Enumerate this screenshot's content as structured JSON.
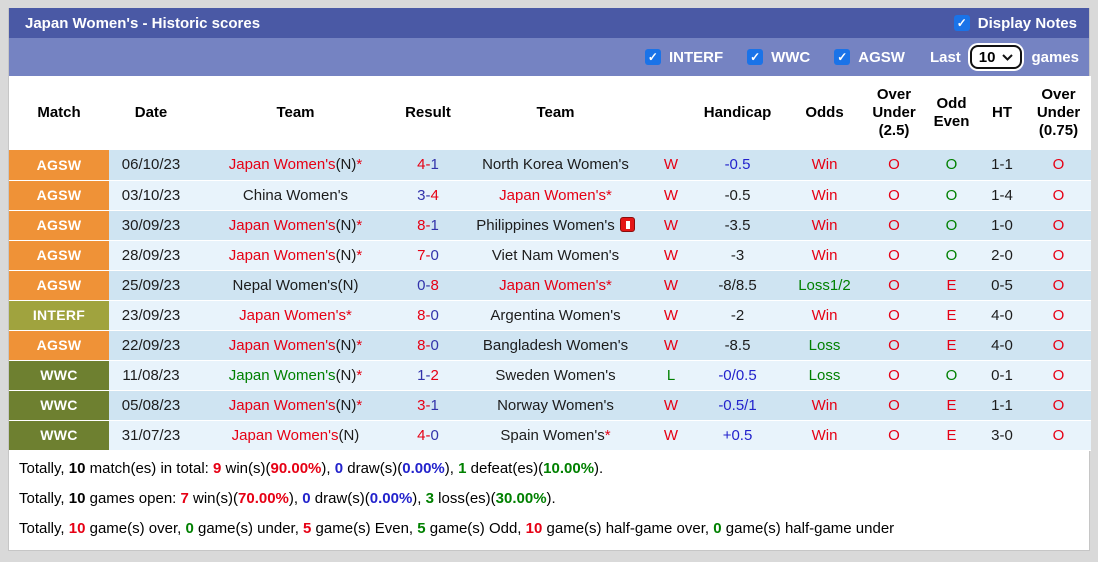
{
  "palette": {
    "red": "#e60014",
    "green": "#008000",
    "blue": "#3232aa",
    "hblue": "#2222cc",
    "black": "#1c1c1c",
    "agsw": "#ef9237",
    "interf": "#a0a33e",
    "wwc": "#6e8030",
    "bar_dark": "#4a59a5",
    "bar_light": "#7583c2",
    "checkbox_blue": "#1a73e8",
    "row_odd": "#cfe4f2",
    "row_even": "#e8f3fb"
  },
  "title_bar": {
    "title": "Japan Women's - Historic scores",
    "display_notes_label": "Display Notes",
    "display_notes_checked": true
  },
  "filter_bar": {
    "checkboxes": [
      {
        "label": "INTERF",
        "checked": true
      },
      {
        "label": "WWC",
        "checked": true
      },
      {
        "label": "AGSW",
        "checked": true
      }
    ],
    "last_label": "Last",
    "games_count": "10",
    "games_label": "games"
  },
  "table": {
    "headers": [
      {
        "lines": [
          "Match"
        ]
      },
      {
        "lines": [
          "Date"
        ]
      },
      {
        "lines": [
          "Team"
        ]
      },
      {
        "lines": [
          "Result"
        ]
      },
      {
        "lines": [
          "Team"
        ]
      },
      {
        "lines": [
          ""
        ]
      },
      {
        "lines": [
          "Handicap"
        ]
      },
      {
        "lines": [
          "Odds"
        ]
      },
      {
        "lines": [
          "Over",
          "Under",
          "(2.5)"
        ]
      },
      {
        "lines": [
          "Odd",
          "Even"
        ]
      },
      {
        "lines": [
          "HT"
        ]
      },
      {
        "lines": [
          "Over",
          "Under",
          "(0.75)"
        ]
      }
    ],
    "rows": [
      {
        "badge": "AGSW",
        "badge_color": "agsw",
        "date": "06/10/23",
        "team1": [
          {
            "t": "Japan Women's",
            "c": "red"
          },
          {
            "t": "(N)",
            "c": "black"
          },
          {
            "t": "*",
            "c": "red"
          }
        ],
        "result": {
          "h": "4",
          "hc": "red",
          "a": "1",
          "ac": "blue"
        },
        "team2": [
          {
            "t": "North Korea Women's",
            "c": "black"
          }
        ],
        "wl": {
          "t": "W",
          "c": "red"
        },
        "handicap": {
          "t": "-0.5",
          "c": "hblue"
        },
        "odds": {
          "t": "Win",
          "c": "red"
        },
        "ou25": {
          "t": "O",
          "c": "red"
        },
        "oe": {
          "t": "O",
          "c": "green"
        },
        "ht": "1-1",
        "ou075": {
          "t": "O",
          "c": "red"
        }
      },
      {
        "badge": "AGSW",
        "badge_color": "agsw",
        "date": "03/10/23",
        "team1": [
          {
            "t": "China Women's",
            "c": "black"
          }
        ],
        "result": {
          "h": "3",
          "hc": "blue",
          "a": "4",
          "ac": "red"
        },
        "team2": [
          {
            "t": "Japan Women's",
            "c": "red"
          },
          {
            "t": "*",
            "c": "red"
          }
        ],
        "wl": {
          "t": "W",
          "c": "red"
        },
        "handicap": {
          "t": "-0.5",
          "c": "black"
        },
        "odds": {
          "t": "Win",
          "c": "red"
        },
        "ou25": {
          "t": "O",
          "c": "red"
        },
        "oe": {
          "t": "O",
          "c": "green"
        },
        "ht": "1-4",
        "ou075": {
          "t": "O",
          "c": "red"
        }
      },
      {
        "badge": "AGSW",
        "badge_color": "agsw",
        "date": "30/09/23",
        "team1": [
          {
            "t": "Japan Women's",
            "c": "red"
          },
          {
            "t": "(N)",
            "c": "black"
          },
          {
            "t": "*",
            "c": "red"
          }
        ],
        "result": {
          "h": "8",
          "hc": "red",
          "a": "1",
          "ac": "blue"
        },
        "team2": [
          {
            "t": "Philippines Women's",
            "c": "black"
          }
        ],
        "icon2": "red-card",
        "wl": {
          "t": "W",
          "c": "red"
        },
        "handicap": {
          "t": "-3.5",
          "c": "black"
        },
        "odds": {
          "t": "Win",
          "c": "red"
        },
        "ou25": {
          "t": "O",
          "c": "red"
        },
        "oe": {
          "t": "O",
          "c": "green"
        },
        "ht": "1-0",
        "ou075": {
          "t": "O",
          "c": "red"
        }
      },
      {
        "badge": "AGSW",
        "badge_color": "agsw",
        "date": "28/09/23",
        "team1": [
          {
            "t": "Japan Women's",
            "c": "red"
          },
          {
            "t": "(N)",
            "c": "black"
          },
          {
            "t": "*",
            "c": "red"
          }
        ],
        "result": {
          "h": "7",
          "hc": "red",
          "a": "0",
          "ac": "blue"
        },
        "team2": [
          {
            "t": "Viet Nam Women's",
            "c": "black"
          }
        ],
        "wl": {
          "t": "W",
          "c": "red"
        },
        "handicap": {
          "t": "-3",
          "c": "black"
        },
        "odds": {
          "t": "Win",
          "c": "red"
        },
        "ou25": {
          "t": "O",
          "c": "red"
        },
        "oe": {
          "t": "O",
          "c": "green"
        },
        "ht": "2-0",
        "ou075": {
          "t": "O",
          "c": "red"
        }
      },
      {
        "badge": "AGSW",
        "badge_color": "agsw",
        "date": "25/09/23",
        "team1": [
          {
            "t": "Nepal Women's(N)",
            "c": "black"
          }
        ],
        "result": {
          "h": "0",
          "hc": "blue",
          "a": "8",
          "ac": "red"
        },
        "team2": [
          {
            "t": "Japan Women's",
            "c": "red"
          },
          {
            "t": "*",
            "c": "red"
          }
        ],
        "wl": {
          "t": "W",
          "c": "red"
        },
        "handicap": {
          "t": "-8/8.5",
          "c": "black"
        },
        "odds": {
          "t": "Loss1/2",
          "c": "green"
        },
        "ou25": {
          "t": "O",
          "c": "red"
        },
        "oe": {
          "t": "E",
          "c": "red"
        },
        "ht": "0-5",
        "ou075": {
          "t": "O",
          "c": "red"
        }
      },
      {
        "badge": "INTERF",
        "badge_color": "interf",
        "date": "23/09/23",
        "team1": [
          {
            "t": "Japan Women's",
            "c": "red"
          },
          {
            "t": "*",
            "c": "red"
          }
        ],
        "result": {
          "h": "8",
          "hc": "red",
          "a": "0",
          "ac": "blue"
        },
        "team2": [
          {
            "t": "Argentina Women's",
            "c": "black"
          }
        ],
        "wl": {
          "t": "W",
          "c": "red"
        },
        "handicap": {
          "t": "-2",
          "c": "black"
        },
        "odds": {
          "t": "Win",
          "c": "red"
        },
        "ou25": {
          "t": "O",
          "c": "red"
        },
        "oe": {
          "t": "E",
          "c": "red"
        },
        "ht": "4-0",
        "ou075": {
          "t": "O",
          "c": "red"
        }
      },
      {
        "badge": "AGSW",
        "badge_color": "agsw",
        "date": "22/09/23",
        "team1": [
          {
            "t": "Japan Women's",
            "c": "red"
          },
          {
            "t": "(N)",
            "c": "black"
          },
          {
            "t": "*",
            "c": "red"
          }
        ],
        "result": {
          "h": "8",
          "hc": "red",
          "a": "0",
          "ac": "blue"
        },
        "team2": [
          {
            "t": "Bangladesh Women's",
            "c": "black"
          }
        ],
        "wl": {
          "t": "W",
          "c": "red"
        },
        "handicap": {
          "t": "-8.5",
          "c": "black"
        },
        "odds": {
          "t": "Loss",
          "c": "green"
        },
        "ou25": {
          "t": "O",
          "c": "red"
        },
        "oe": {
          "t": "E",
          "c": "red"
        },
        "ht": "4-0",
        "ou075": {
          "t": "O",
          "c": "red"
        }
      },
      {
        "badge": "WWC",
        "badge_color": "wwc",
        "date": "11/08/23",
        "team1": [
          {
            "t": "Japan Women's",
            "c": "green"
          },
          {
            "t": "(N)",
            "c": "black"
          },
          {
            "t": "*",
            "c": "red"
          }
        ],
        "result": {
          "h": "1",
          "hc": "blue",
          "a": "2",
          "ac": "red"
        },
        "team2": [
          {
            "t": "Sweden Women's",
            "c": "black"
          }
        ],
        "wl": {
          "t": "L",
          "c": "green"
        },
        "handicap": {
          "t": "-0/0.5",
          "c": "hblue"
        },
        "odds": {
          "t": "Loss",
          "c": "green"
        },
        "ou25": {
          "t": "O",
          "c": "red"
        },
        "oe": {
          "t": "O",
          "c": "green"
        },
        "ht": "0-1",
        "ou075": {
          "t": "O",
          "c": "red"
        }
      },
      {
        "badge": "WWC",
        "badge_color": "wwc",
        "date": "05/08/23",
        "team1": [
          {
            "t": "Japan Women's",
            "c": "red"
          },
          {
            "t": "(N)",
            "c": "black"
          },
          {
            "t": "*",
            "c": "red"
          }
        ],
        "result": {
          "h": "3",
          "hc": "red",
          "a": "1",
          "ac": "blue"
        },
        "team2": [
          {
            "t": "Norway Women's",
            "c": "black"
          }
        ],
        "wl": {
          "t": "W",
          "c": "red"
        },
        "handicap": {
          "t": "-0.5/1",
          "c": "hblue"
        },
        "odds": {
          "t": "Win",
          "c": "red"
        },
        "ou25": {
          "t": "O",
          "c": "red"
        },
        "oe": {
          "t": "E",
          "c": "red"
        },
        "ht": "1-1",
        "ou075": {
          "t": "O",
          "c": "red"
        }
      },
      {
        "badge": "WWC",
        "badge_color": "wwc",
        "date": "31/07/23",
        "team1": [
          {
            "t": "Japan Women's",
            "c": "red"
          },
          {
            "t": "(N)",
            "c": "black"
          }
        ],
        "result": {
          "h": "4",
          "hc": "red",
          "a": "0",
          "ac": "blue"
        },
        "team2": [
          {
            "t": "Spain Women's",
            "c": "black"
          },
          {
            "t": "*",
            "c": "red"
          }
        ],
        "wl": {
          "t": "W",
          "c": "red"
        },
        "handicap": {
          "t": "+0.5",
          "c": "hblue"
        },
        "odds": {
          "t": "Win",
          "c": "red"
        },
        "ou25": {
          "t": "O",
          "c": "red"
        },
        "oe": {
          "t": "E",
          "c": "red"
        },
        "ht": "3-0",
        "ou075": {
          "t": "O",
          "c": "red"
        }
      }
    ]
  },
  "summary": {
    "lines": [
      [
        {
          "t": "Totally, "
        },
        {
          "t": "10",
          "b": 1
        },
        {
          "t": " match(es) in total: "
        },
        {
          "t": "9",
          "c": "red",
          "b": 1
        },
        {
          "t": " win(s)("
        },
        {
          "t": "90.00%",
          "c": "red",
          "b": 1
        },
        {
          "t": "), "
        },
        {
          "t": "0",
          "c": "hblue",
          "b": 1
        },
        {
          "t": " draw(s)("
        },
        {
          "t": "0.00%",
          "c": "hblue",
          "b": 1
        },
        {
          "t": "), "
        },
        {
          "t": "1",
          "c": "green",
          "b": 1
        },
        {
          "t": " defeat(es)("
        },
        {
          "t": "10.00%",
          "c": "green",
          "b": 1
        },
        {
          "t": ")."
        }
      ],
      [
        {
          "t": "Totally, "
        },
        {
          "t": "10",
          "b": 1
        },
        {
          "t": " games open: "
        },
        {
          "t": "7",
          "c": "red",
          "b": 1
        },
        {
          "t": " win(s)("
        },
        {
          "t": "70.00%",
          "c": "red",
          "b": 1
        },
        {
          "t": "), "
        },
        {
          "t": "0",
          "c": "hblue",
          "b": 1
        },
        {
          "t": " draw(s)("
        },
        {
          "t": "0.00%",
          "c": "hblue",
          "b": 1
        },
        {
          "t": "), "
        },
        {
          "t": "3",
          "c": "green",
          "b": 1
        },
        {
          "t": " loss(es)("
        },
        {
          "t": "30.00%",
          "c": "green",
          "b": 1
        },
        {
          "t": ")."
        }
      ],
      [
        {
          "t": "Totally, "
        },
        {
          "t": "10",
          "c": "red",
          "b": 1
        },
        {
          "t": " game(s) over, "
        },
        {
          "t": "0",
          "c": "green",
          "b": 1
        },
        {
          "t": " game(s) under, "
        },
        {
          "t": "5",
          "c": "red",
          "b": 1
        },
        {
          "t": " game(s) Even, "
        },
        {
          "t": "5",
          "c": "green",
          "b": 1
        },
        {
          "t": " game(s) Odd, "
        },
        {
          "t": "10",
          "c": "red",
          "b": 1
        },
        {
          "t": " game(s) half-game over, "
        },
        {
          "t": "0",
          "c": "green",
          "b": 1
        },
        {
          "t": " game(s) half-game under"
        }
      ]
    ]
  }
}
